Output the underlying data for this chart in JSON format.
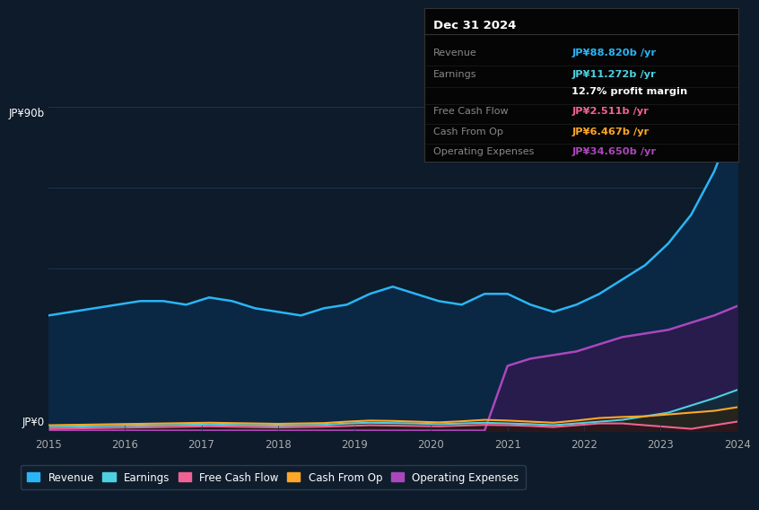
{
  "background_color": "#0d1b2a",
  "plot_bg_color": "#0d1b2a",
  "ylabel_top": "JP¥90b",
  "ylabel_bottom": "JP¥0",
  "x_labels": [
    "2015",
    "2016",
    "2017",
    "2018",
    "2019",
    "2020",
    "2021",
    "2022",
    "2023",
    "2024"
  ],
  "legend_labels": [
    "Revenue",
    "Earnings",
    "Free Cash Flow",
    "Cash From Op",
    "Operating Expenses"
  ],
  "legend_colors": [
    "#29b6f6",
    "#4dd0e1",
    "#f06292",
    "#ffa726",
    "#ab47bc"
  ],
  "info_box_title": "Dec 31 2024",
  "info_rows": [
    {
      "label": "Revenue",
      "value": "JP¥88.820b /yr",
      "value_color": "#29b6f6"
    },
    {
      "label": "Earnings",
      "value": "JP¥11.272b /yr",
      "value_color": "#4dd0e1"
    },
    {
      "label": "",
      "value": "12.7% profit margin",
      "value_color": "#ffffff"
    },
    {
      "label": "Free Cash Flow",
      "value": "JP¥2.511b /yr",
      "value_color": "#f06292"
    },
    {
      "label": "Cash From Op",
      "value": "JP¥6.467b /yr",
      "value_color": "#ffa726"
    },
    {
      "label": "Operating Expenses",
      "value": "JP¥34.650b /yr",
      "value_color": "#ab47bc"
    }
  ],
  "revenue": [
    32,
    33,
    34,
    35,
    36,
    36,
    35,
    37,
    36,
    34,
    33,
    32,
    34,
    35,
    38,
    40,
    38,
    36,
    35,
    38,
    38,
    35,
    33,
    35,
    38,
    42,
    46,
    52,
    60,
    72,
    88
  ],
  "earnings": [
    1.0,
    1.1,
    1.2,
    1.3,
    1.4,
    1.5,
    1.6,
    1.7,
    1.6,
    1.5,
    1.4,
    1.5,
    1.6,
    2.0,
    2.2,
    2.1,
    2.0,
    1.8,
    2.0,
    2.2,
    2.0,
    1.8,
    1.5,
    2.0,
    2.5,
    3.0,
    4.0,
    5.0,
    7.0,
    9.0,
    11.3
  ],
  "free_cash_flow": [
    0.5,
    0.6,
    0.7,
    0.8,
    0.9,
    1.0,
    1.1,
    1.2,
    1.1,
    1.0,
    0.9,
    1.0,
    1.1,
    1.3,
    1.5,
    1.4,
    1.3,
    1.2,
    1.4,
    1.6,
    1.5,
    1.3,
    1.0,
    1.5,
    2.0,
    2.0,
    1.5,
    1.0,
    0.5,
    1.5,
    2.5
  ],
  "cash_from_op": [
    1.5,
    1.6,
    1.7,
    1.8,
    1.9,
    2.0,
    2.1,
    2.2,
    2.1,
    2.0,
    1.9,
    2.0,
    2.1,
    2.5,
    2.8,
    2.7,
    2.5,
    2.3,
    2.6,
    3.0,
    2.8,
    2.5,
    2.2,
    2.8,
    3.5,
    3.8,
    4.0,
    4.5,
    5.0,
    5.5,
    6.5
  ],
  "op_expenses": [
    0,
    0,
    0,
    0,
    0,
    0,
    0,
    0,
    0,
    0,
    0,
    0,
    0,
    0,
    0,
    0,
    0,
    0,
    0,
    0,
    18,
    20,
    21,
    22,
    24,
    26,
    27,
    28,
    30,
    32,
    34.6
  ],
  "n_points": 31,
  "ylim": [
    0,
    95
  ],
  "xlim": [
    0,
    30
  ]
}
